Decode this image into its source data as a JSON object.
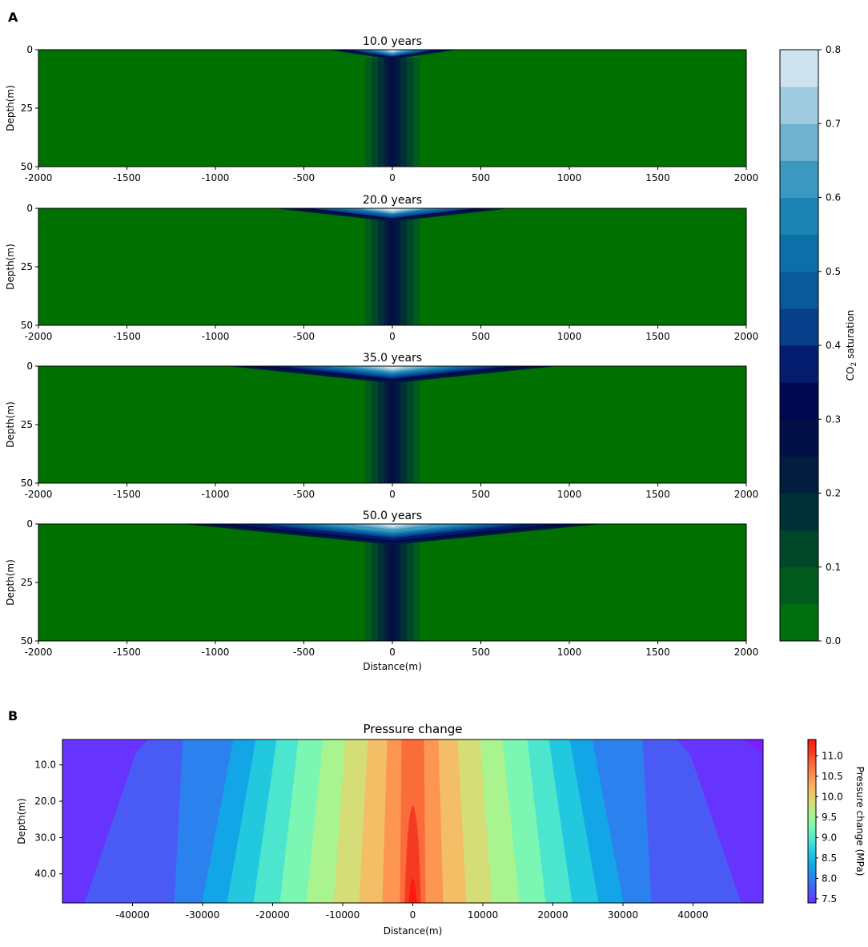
{
  "panel_labels": {
    "a": "A",
    "b": "B"
  },
  "chart_data": [
    {
      "type": "heatmap",
      "description_variable": "CO2 saturation contour plots",
      "colorbar": {
        "label_prefix": "CO",
        "label_sub": "2",
        "label_suffix": " saturation",
        "range": [
          0.0,
          0.8
        ],
        "ticks": [
          "0.0",
          "0.1",
          "0.2",
          "0.3",
          "0.4",
          "0.5",
          "0.6",
          "0.7",
          "0.8"
        ],
        "levels": 16,
        "colors": [
          "#006f0e",
          "#005b1c",
          "#00472a",
          "#003137",
          "#021d3e",
          "#021046",
          "#010850",
          "#041c6d",
          "#083f8b",
          "#0a5a9a",
          "#0c6fa7",
          "#1c84b4",
          "#3b99c0",
          "#6fb2d0",
          "#9fcbde",
          "#cfe3ee"
        ]
      },
      "panels": [
        {
          "title": "10.0 years",
          "plume_half_width_m": 370
        },
        {
          "title": "20.0 years",
          "plume_half_width_m": 670
        },
        {
          "title": "35.0 years",
          "plume_half_width_m": 930
        },
        {
          "title": "50.0 years",
          "plume_half_width_m": 1180
        }
      ],
      "x_ticks": [
        "-2000",
        "-1500",
        "-1000",
        "-500",
        "0",
        "500",
        "1000",
        "1500",
        "2000"
      ],
      "xlim": [
        -2000,
        2000
      ],
      "y_ticks": [
        "0",
        "25",
        "50"
      ],
      "ylim": [
        50,
        0
      ],
      "ylabel": "Depth(m)",
      "xlabel": "Distance(m)",
      "background_color": "#007000"
    },
    {
      "type": "heatmap",
      "title": "Pressure change",
      "xlabel": "Distance(m)",
      "ylabel": "Depth(m)",
      "xlim": [
        -50000,
        50000
      ],
      "ylim": [
        48,
        3
      ],
      "x_ticks": [
        "-40000",
        "-30000",
        "-20000",
        "-10000",
        "0",
        "10000",
        "20000",
        "30000",
        "40000"
      ],
      "y_ticks": [
        "10.0",
        "20.0",
        "30.0",
        "40.0"
      ],
      "colorbar": {
        "label": "Pressure change (MPa)",
        "range": [
          7.4,
          11.4
        ],
        "ticks": [
          "7.5",
          "8.0",
          "8.5",
          "9.0",
          "9.5",
          "10.0",
          "10.5",
          "11.0"
        ],
        "colors": [
          "#6633ff",
          "#4a5bf5",
          "#2b82ee",
          "#13a6e7",
          "#22c8de",
          "#4ce6cf",
          "#7cf6b3",
          "#a9f48f",
          "#d4dd76",
          "#f3be66",
          "#fd9653",
          "#fb6c3b",
          "#f53a22",
          "#ff1a0e"
        ]
      }
    }
  ]
}
